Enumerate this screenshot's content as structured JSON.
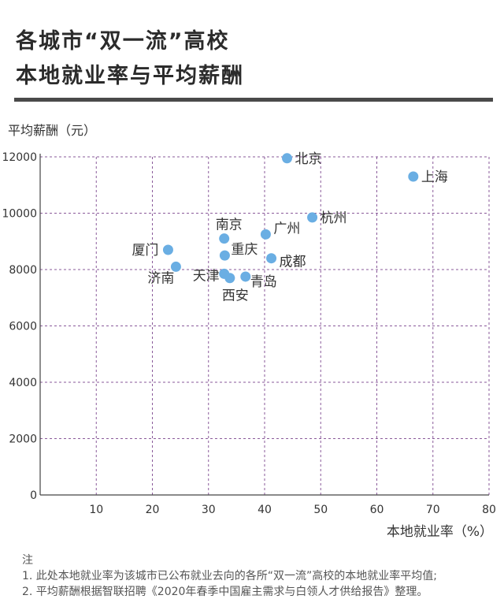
{
  "header": {
    "title_line1": "各城市“双一流”高校",
    "title_line2": "本地就业率与平均薪酬"
  },
  "notes": {
    "heading": "注",
    "line1": "1. 此处本地就业率为该城市已公布就业去向的各所“双一流”高校的本地就业率平均值;",
    "line2": "2. 平均薪酬根据智联招聘《2020年春季中国雇主需求与白领人才供给报告》整理。"
  },
  "chart_data": {
    "type": "scatter",
    "xlabel": "本地就业率（%）",
    "ylabel": "平均薪酬（元）",
    "xlim": [
      0,
      80
    ],
    "ylim": [
      0,
      12000
    ],
    "x_ticks": [
      10,
      20,
      30,
      40,
      50,
      60,
      70,
      80
    ],
    "y_ticks": [
      0,
      2000,
      4000,
      6000,
      8000,
      10000,
      12000
    ],
    "grid": true,
    "point_color": "#6aaee3",
    "points": [
      {
        "label": "北京",
        "x": 44.0,
        "y": 11950
      },
      {
        "label": "上海",
        "x": 66.5,
        "y": 11300
      },
      {
        "label": "杭州",
        "x": 48.5,
        "y": 9850
      },
      {
        "label": "南京",
        "x": 32.8,
        "y": 9100
      },
      {
        "label": "广州",
        "x": 40.2,
        "y": 9250
      },
      {
        "label": "厦门",
        "x": 22.8,
        "y": 8700
      },
      {
        "label": "重庆",
        "x": 32.9,
        "y": 8500
      },
      {
        "label": "成都",
        "x": 41.2,
        "y": 8400
      },
      {
        "label": "济南",
        "x": 24.2,
        "y": 8100
      },
      {
        "label": "天津",
        "x": 32.8,
        "y": 7850
      },
      {
        "label": "西安",
        "x": 33.8,
        "y": 7700
      },
      {
        "label": "青岛",
        "x": 36.6,
        "y": 7750
      }
    ]
  }
}
